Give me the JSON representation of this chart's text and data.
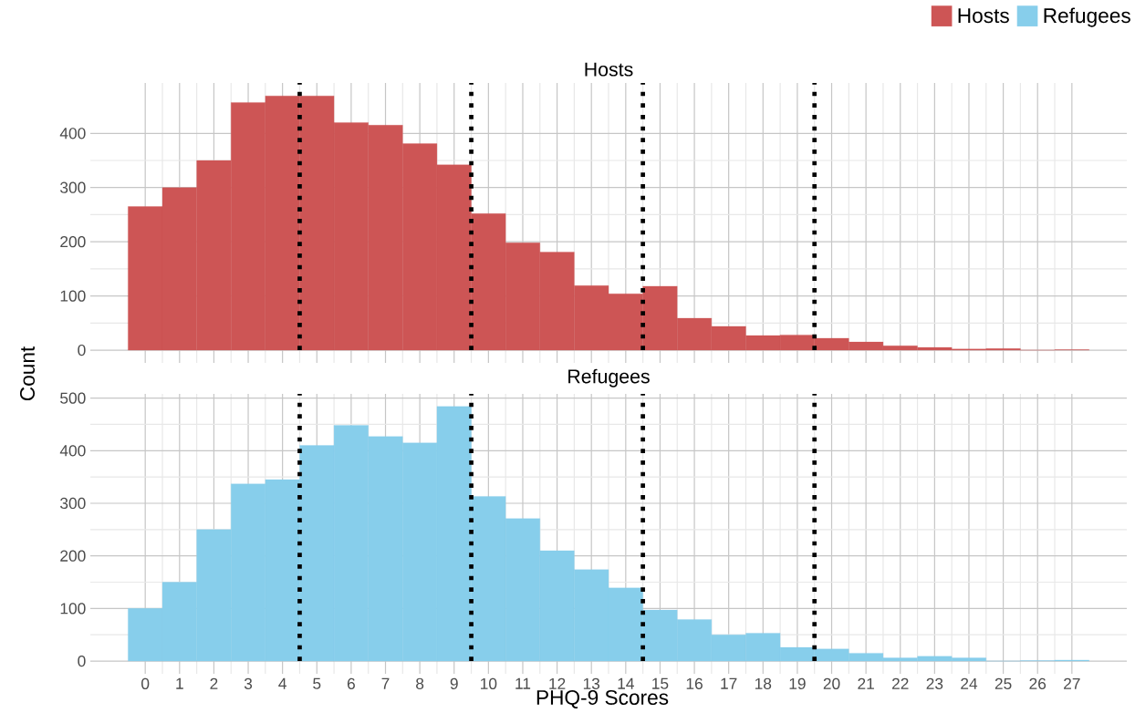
{
  "chart_data": [
    {
      "type": "histogram",
      "title": "Hosts",
      "ylabel": "Count",
      "bins": [
        -0.5,
        0.5,
        1.5,
        2.5,
        3.5,
        4.5,
        5.5,
        6.5,
        7.5,
        8.5,
        9.5,
        10.5,
        11.5,
        12.5,
        13.5,
        14.5,
        15.5,
        16.5,
        17.5,
        18.5,
        19.5,
        20.5,
        21.5,
        22.5,
        23.5,
        24.5,
        25.5,
        26.5,
        27.5
      ],
      "series": [
        {
          "name": "Hosts",
          "color": "#cd5555",
          "values": [
            265,
            300,
            350,
            457,
            469,
            469,
            420,
            415,
            381,
            342,
            252,
            198,
            181,
            119,
            104,
            118,
            59,
            44,
            27,
            28,
            22,
            15,
            8,
            5,
            2,
            3,
            0,
            1
          ]
        }
      ],
      "xlim": [
        -1.6,
        28.6
      ],
      "ylim": [
        -23.5,
        493
      ],
      "xticks": [
        0,
        1,
        2,
        3,
        4,
        5,
        6,
        7,
        8,
        9,
        10,
        11,
        12,
        13,
        14,
        15,
        16,
        17,
        18,
        19,
        20,
        21,
        22,
        23,
        24,
        25,
        26,
        27
      ],
      "yticks": [
        0,
        100,
        200,
        300,
        400
      ],
      "tick_labels": "y",
      "grid": true,
      "legend": "top right",
      "ref_lines": [
        {
          "axis": "x",
          "value": 4.5,
          "color": "#000000",
          "line_style": "dotted"
        },
        {
          "axis": "x",
          "value": 9.5,
          "color": "#000000",
          "line_style": "dotted"
        },
        {
          "axis": "x",
          "value": 14.5,
          "color": "#000000",
          "line_style": "dotted"
        },
        {
          "axis": "x",
          "value": 19.5,
          "color": "#000000",
          "line_style": "dotted"
        }
      ]
    },
    {
      "type": "histogram",
      "title": "Refugees",
      "xlabel": "PHQ-9 Scores",
      "bins": [
        -0.5,
        0.5,
        1.5,
        2.5,
        3.5,
        4.5,
        5.5,
        6.5,
        7.5,
        8.5,
        9.5,
        10.5,
        11.5,
        12.5,
        13.5,
        14.5,
        15.5,
        16.5,
        17.5,
        18.5,
        19.5,
        20.5,
        21.5,
        22.5,
        23.5,
        24.5,
        25.5,
        26.5,
        27.5
      ],
      "series": [
        {
          "name": "Refugees",
          "color": "#87ceeb",
          "values": [
            100,
            150,
            250,
            337,
            345,
            410,
            448,
            427,
            415,
            484,
            313,
            271,
            210,
            174,
            139,
            97,
            79,
            50,
            53,
            26,
            23,
            15,
            6,
            9,
            6,
            0,
            1,
            2
          ]
        }
      ],
      "xlim": [
        -1.6,
        28.6
      ],
      "ylim": [
        -24.2,
        508
      ],
      "xticks": [
        0,
        1,
        2,
        3,
        4,
        5,
        6,
        7,
        8,
        9,
        10,
        11,
        12,
        13,
        14,
        15,
        16,
        17,
        18,
        19,
        20,
        21,
        22,
        23,
        24,
        25,
        26,
        27
      ],
      "yticks": [
        0,
        100,
        200,
        300,
        400,
        500
      ],
      "grid": true,
      "legend": "top right",
      "ref_lines": [
        {
          "axis": "x",
          "value": 4.5,
          "color": "#000000",
          "line_style": "dotted"
        },
        {
          "axis": "x",
          "value": 9.5,
          "color": "#000000",
          "line_style": "dotted"
        },
        {
          "axis": "x",
          "value": 14.5,
          "color": "#000000",
          "line_style": "dotted"
        },
        {
          "axis": "x",
          "value": 19.5,
          "color": "#000000",
          "line_style": "dotted"
        }
      ]
    }
  ]
}
